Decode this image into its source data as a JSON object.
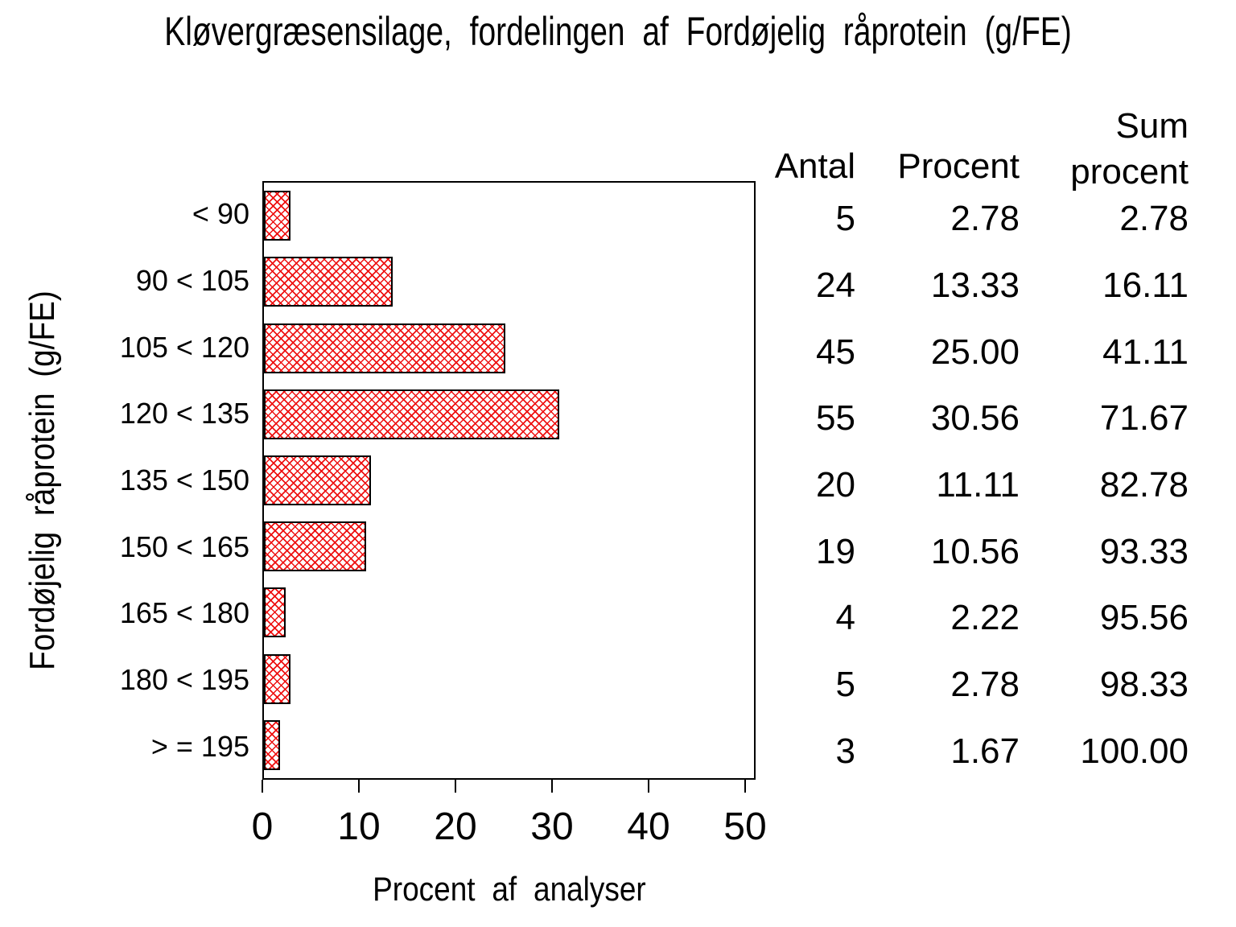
{
  "title": "Kløvergræsensilage, fordelingen af Fordøjelig råprotein (g/FE)",
  "colors": {
    "bar_pattern_red": "#ee1111",
    "bar_border": "#000000",
    "text": "#000000",
    "background": "#ffffff"
  },
  "chart_data": {
    "type": "bar",
    "orientation": "horizontal",
    "title": "Kløvergræsensilage, fordelingen af Fordøjelig råprotein (g/FE)",
    "categories": [
      "< 90",
      "90 < 105",
      "105 < 120",
      "120 < 135",
      "135 < 150",
      "150 < 165",
      "165 < 180",
      "180 < 195",
      "> = 195"
    ],
    "values": [
      2.78,
      13.33,
      25.0,
      30.56,
      11.11,
      10.56,
      2.22,
      2.78,
      1.67
    ],
    "counts": [
      5,
      24,
      45,
      55,
      20,
      19,
      4,
      5,
      3
    ],
    "cumulative_percent": [
      2.78,
      16.11,
      41.11,
      71.67,
      82.78,
      93.33,
      95.56,
      98.33,
      100.0
    ],
    "xlabel": "Procent af analyser",
    "ylabel": "Fordøjelig råprotein (g/FE)",
    "xlim": [
      0,
      50
    ],
    "xticks": [
      0,
      10,
      20,
      30,
      40,
      50
    ],
    "grid": false,
    "bar_style": "red diagonal crosshatch with black outline",
    "legend": "none"
  },
  "summary_table": {
    "header_antal": "Antal",
    "header_procent": "Procent",
    "header_sum_line1": "Sum",
    "header_sum_line2": "procent",
    "rows": [
      {
        "antal": "5",
        "procent": "2.78",
        "sum_procent": "2.78"
      },
      {
        "antal": "24",
        "procent": "13.33",
        "sum_procent": "16.11"
      },
      {
        "antal": "45",
        "procent": "25.00",
        "sum_procent": "41.11"
      },
      {
        "antal": "55",
        "procent": "30.56",
        "sum_procent": "71.67"
      },
      {
        "antal": "20",
        "procent": "11.11",
        "sum_procent": "82.78"
      },
      {
        "antal": "19",
        "procent": "10.56",
        "sum_procent": "93.33"
      },
      {
        "antal": "4",
        "procent": "2.22",
        "sum_procent": "95.56"
      },
      {
        "antal": "5",
        "procent": "2.78",
        "sum_procent": "98.33"
      },
      {
        "antal": "3",
        "procent": "1.67",
        "sum_procent": "100.00"
      }
    ]
  }
}
